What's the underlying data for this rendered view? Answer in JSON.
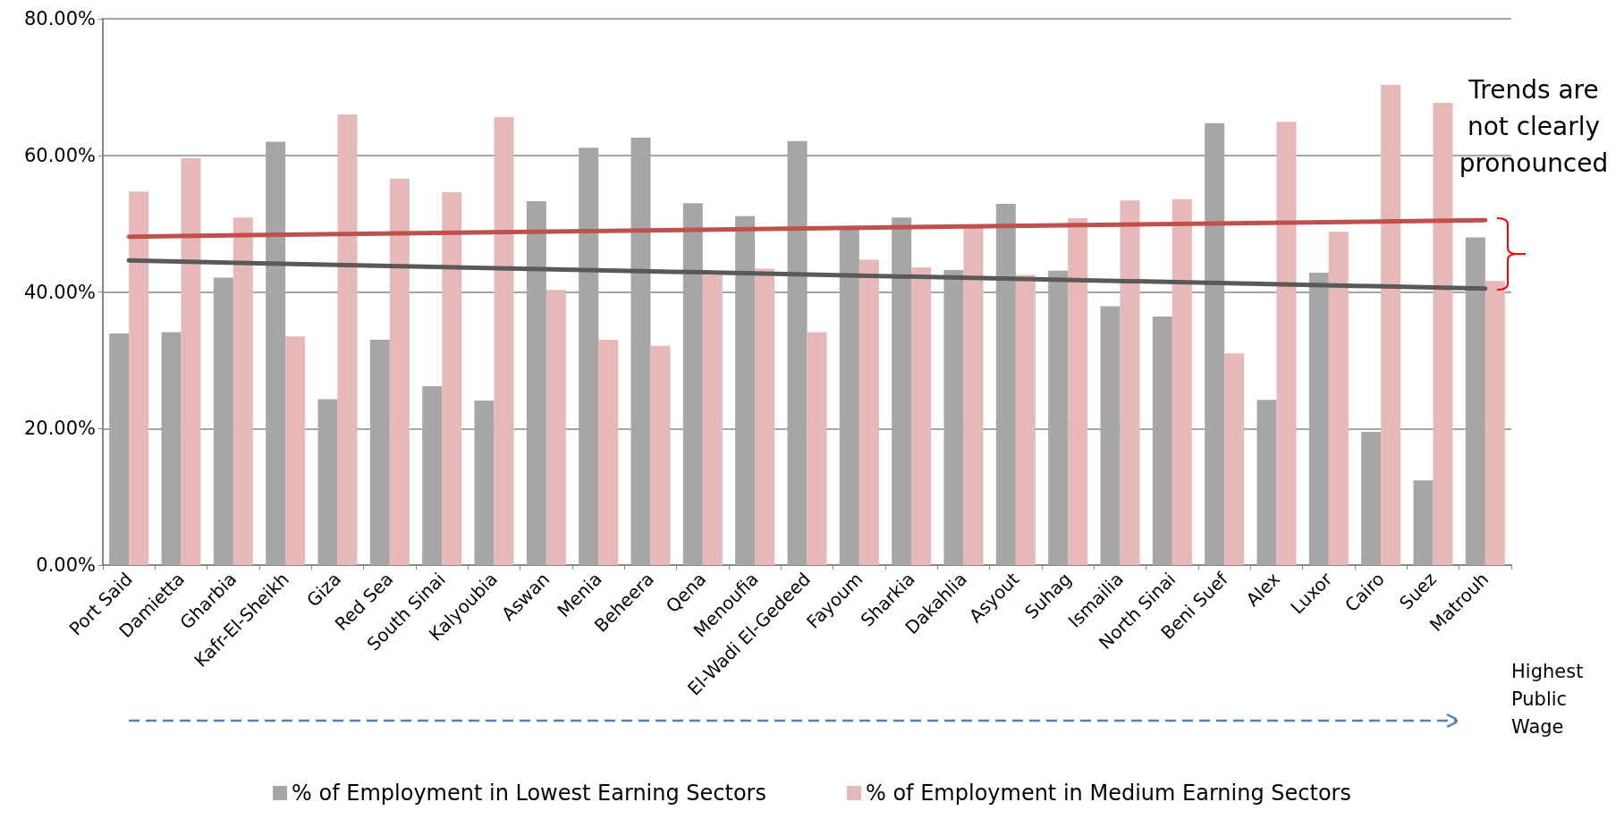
{
  "chart_data": {
    "type": "bar",
    "categories": [
      "Port Said",
      "Damietta",
      "Gharbia",
      "Kafr-El-Sheikh",
      "Giza",
      "Red Sea",
      "South Sinai",
      "Kalyoubia",
      "Aswan",
      "Menia",
      "Beheera",
      "Qena",
      "Menoufia",
      "El-Wadi El-Gedeed",
      "Fayoum",
      "Sharkia",
      "Dakahlia",
      "Asyout",
      "Suhag",
      "Ismailia",
      "North Sinai",
      "Beni Suef",
      "Alex",
      "Luxor",
      "Cairo",
      "Suez",
      "Matrouh"
    ],
    "series": [
      {
        "name": "% of Employment in Lowest Earning Sectors",
        "color": "#a6a6a6",
        "values": [
          33.9,
          34.1,
          42.1,
          62.0,
          24.3,
          33.0,
          26.2,
          24.1,
          53.3,
          61.1,
          62.6,
          53.0,
          51.1,
          62.1,
          49.2,
          50.9,
          43.2,
          52.9,
          43.1,
          37.9,
          36.4,
          64.7,
          24.2,
          42.8,
          19.5,
          12.4,
          48.0
        ]
      },
      {
        "name": "% of Employment in Medium Earning Sectors",
        "color": "#e6b9b8",
        "values": [
          54.7,
          59.6,
          50.9,
          33.5,
          66.0,
          56.6,
          54.6,
          65.6,
          40.3,
          33.0,
          32.1,
          42.5,
          43.4,
          34.1,
          44.7,
          43.6,
          49.5,
          42.5,
          50.8,
          53.4,
          53.6,
          31.0,
          64.9,
          48.8,
          70.3,
          67.7,
          41.6
        ]
      },
      {
        "type": "line",
        "color": "#c0504d",
        "x": [
          "Port Said",
          "Matrouh"
        ],
        "values": [
          48.1,
          50.5
        ]
      },
      {
        "type": "line",
        "color": "#595959",
        "x": [
          "Port Said",
          "Matrouh"
        ],
        "values": [
          44.6,
          40.5
        ]
      }
    ],
    "ylim": [
      0,
      80
    ],
    "yticks": [
      {
        "value": 0,
        "label": "0.00%"
      },
      {
        "value": 20,
        "label": "20.00%"
      },
      {
        "value": 40,
        "label": "40.00%"
      },
      {
        "value": 60,
        "label": "60.00%"
      },
      {
        "value": 80,
        "label": "80.00%"
      }
    ],
    "grid": "y",
    "legend": "bottom",
    "marker": "none",
    "line_style": "solid",
    "annotations": [
      "Trends are not clearly pronounced",
      "Highest Public Wage"
    ]
  }
}
